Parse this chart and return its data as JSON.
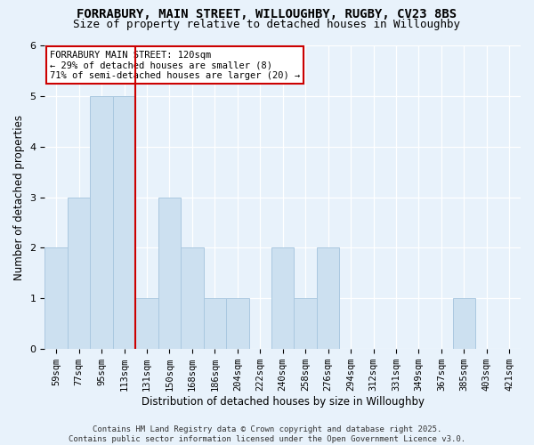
{
  "title_line1": "FORRABURY, MAIN STREET, WILLOUGHBY, RUGBY, CV23 8BS",
  "title_line2": "Size of property relative to detached houses in Willoughby",
  "xlabel": "Distribution of detached houses by size in Willoughby",
  "ylabel": "Number of detached properties",
  "categories": [
    "59sqm",
    "77sqm",
    "95sqm",
    "113sqm",
    "131sqm",
    "150sqm",
    "168sqm",
    "186sqm",
    "204sqm",
    "222sqm",
    "240sqm",
    "258sqm",
    "276sqm",
    "294sqm",
    "312sqm",
    "331sqm",
    "349sqm",
    "367sqm",
    "385sqm",
    "403sqm",
    "421sqm"
  ],
  "values": [
    2,
    3,
    5,
    5,
    1,
    3,
    2,
    1,
    1,
    0,
    2,
    1,
    2,
    0,
    0,
    0,
    0,
    0,
    1,
    0,
    0
  ],
  "bar_color": "#cce0f0",
  "bar_edge_color": "#aac8e0",
  "vline_index": 3,
  "vline_color": "#cc0000",
  "annotation_text": "FORRABURY MAIN STREET: 120sqm\n← 29% of detached houses are smaller (8)\n71% of semi-detached houses are larger (20) →",
  "annotation_box_facecolor": "#ffffff",
  "annotation_box_edgecolor": "#cc0000",
  "ylim": [
    0,
    6
  ],
  "yticks": [
    0,
    1,
    2,
    3,
    4,
    5,
    6
  ],
  "footer_text": "Contains HM Land Registry data © Crown copyright and database right 2025.\nContains public sector information licensed under the Open Government Licence v3.0.",
  "fig_facecolor": "#e8f2fb",
  "ax_facecolor": "#e8f2fb",
  "grid_color": "#ffffff",
  "title1_fontsize": 10,
  "title2_fontsize": 9,
  "axis_label_fontsize": 8.5,
  "tick_fontsize": 7.5,
  "annotation_fontsize": 7.5,
  "footer_fontsize": 6.5
}
